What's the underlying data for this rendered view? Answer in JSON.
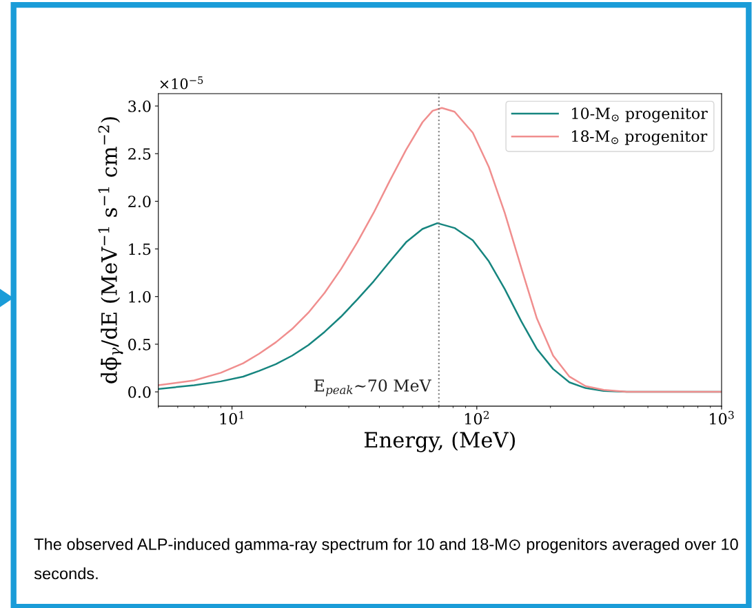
{
  "chart_data": {
    "type": "line",
    "xlabel": "Energy, (MeV)",
    "ylabel": "dϕ̄$_{γ}$/dE (MeV$^{−1}$ s$^{−1}$ cm$^{−2}$)",
    "log": "x",
    "xlim": [
      5,
      1000
    ],
    "xticks": [
      {
        "value": 10,
        "label": "10$^{1}$"
      },
      {
        "value": 100,
        "label": "10$^{2}$"
      },
      {
        "value": 1000,
        "label": "10$^{3}$"
      }
    ],
    "ylim": [
      -0.15,
      3.13
    ],
    "yticks": [
      {
        "value": 0,
        "label": "0.0"
      },
      0.5,
      {
        "value": 1,
        "label": "1.0"
      },
      1.5,
      {
        "value": 2,
        "label": "2.0"
      },
      2.5,
      {
        "value": 3,
        "label": "3.0"
      }
    ],
    "series": [
      {
        "name": "10-M$_{⊙}$ progenitor",
        "color": "#16857f",
        "x": [
          5,
          7,
          9,
          11.1,
          12.9,
          15.1,
          17.6,
          20.5,
          23.9,
          27.9,
          32.5,
          37.9,
          44.2,
          51.4,
          60,
          69,
          81.1,
          96.3,
          112,
          130,
          152,
          176,
          205,
          239,
          278,
          330,
          409,
          1000
        ],
        "values": [
          0.03,
          0.07,
          0.11,
          0.16,
          0.22,
          0.29,
          0.38,
          0.49,
          0.63,
          0.79,
          0.97,
          1.16,
          1.37,
          1.57,
          1.71,
          1.77,
          1.72,
          1.59,
          1.37,
          1.08,
          0.74,
          0.45,
          0.24,
          0.1,
          0.04,
          0.01,
          0,
          0
        ]
      },
      {
        "name": "18-M$_{⊙}$ progenitor",
        "color": "#f08e8e",
        "x": [
          5,
          7,
          9,
          11.1,
          12.9,
          15.1,
          17.6,
          20.5,
          23.9,
          27.9,
          32.5,
          37.9,
          44.2,
          51.4,
          60,
          66,
          72,
          81.1,
          96.3,
          112,
          130,
          152,
          176,
          205,
          239,
          278,
          330,
          409,
          1000
        ],
        "values": [
          0.07,
          0.12,
          0.2,
          0.3,
          0.4,
          0.52,
          0.66,
          0.83,
          1.04,
          1.29,
          1.57,
          1.88,
          2.22,
          2.54,
          2.83,
          2.95,
          2.98,
          2.94,
          2.72,
          2.36,
          1.88,
          1.3,
          0.77,
          0.38,
          0.16,
          0.06,
          0.02,
          0,
          0
        ]
      }
    ],
    "ref_lines": [
      {
        "axis": "x",
        "value": 70,
        "label": "E$_{peak}$∼70 MeV",
        "color": "#777777",
        "line_style": "dotted"
      }
    ],
    "legend": "top right",
    "annotations": [
      "×10$^{−5}$",
      "The observed ALP-induced gamma-ray spectrum for 10 and 18-M⊙ progenitors averaged over 10 seconds."
    ]
  }
}
